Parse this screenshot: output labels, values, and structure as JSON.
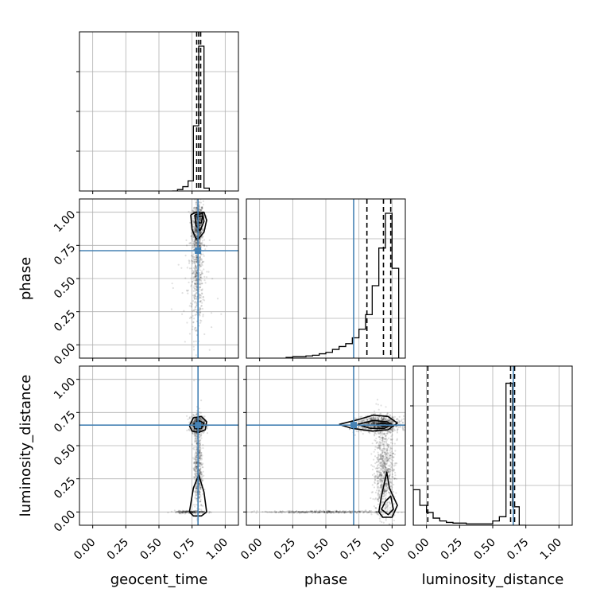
{
  "chart_data": {
    "type": "corner",
    "parameters": [
      "geocent_time",
      "phase",
      "luminosity_distance"
    ],
    "axis_range": [
      -0.1,
      1.1
    ],
    "tick_labels": [
      "0.00",
      "0.25",
      "0.50",
      "0.75",
      "1.00"
    ],
    "tick_values": [
      0,
      0.25,
      0.5,
      0.75,
      1.0
    ],
    "grid": true,
    "truths": {
      "geocent_time": 0.795,
      "phase": 0.71,
      "luminosity_distance": 0.655
    },
    "truth_color": "#4682b4",
    "quantiles": {
      "geocent_time": [
        0.785,
        0.8,
        0.815
      ],
      "phase": [
        0.81,
        0.935,
        0.99
      ],
      "luminosity_distance": [
        0.01,
        0.635,
        0.665
      ]
    },
    "histograms": {
      "geocent_time": {
        "edges": [
          0.6,
          0.64,
          0.68,
          0.72,
          0.76,
          0.8,
          0.84,
          0.88
        ],
        "counts": [
          0,
          0.01,
          0.03,
          0.07,
          0.45,
          1.0,
          0.02
        ],
        "ymax": 1.0
      },
      "phase": {
        "edges": [
          0.2,
          0.25,
          0.3,
          0.35,
          0.4,
          0.45,
          0.5,
          0.55,
          0.6,
          0.65,
          0.7,
          0.75,
          0.8,
          0.85,
          0.9,
          0.95,
          1.0,
          1.05
        ],
        "counts": [
          0.005,
          0.01,
          0.01,
          0.015,
          0.02,
          0.03,
          0.04,
          0.06,
          0.08,
          0.1,
          0.14,
          0.2,
          0.3,
          0.5,
          0.76,
          1.0,
          0.62
        ],
        "ymax": 1.0
      },
      "luminosity_distance": {
        "edges": [
          -0.1,
          -0.05,
          0.0,
          0.05,
          0.1,
          0.15,
          0.2,
          0.3,
          0.4,
          0.5,
          0.55,
          0.6,
          0.65,
          0.7,
          0.75
        ],
        "counts": [
          0.25,
          0.14,
          0.09,
          0.05,
          0.03,
          0.02,
          0.015,
          0.01,
          0.01,
          0.03,
          0.06,
          1.0,
          0.13,
          0.0
        ],
        "ymax": 1.02
      }
    },
    "scatter_clusters": {
      "geocent_time_phase": [
        {
          "cx": 0.795,
          "cy": 0.9,
          "sx": 0.02,
          "sy": 0.09,
          "n": 700
        },
        {
          "cx": 0.79,
          "cy": 0.55,
          "sx": 0.02,
          "sy": 0.2,
          "n": 500
        },
        {
          "cx": 0.78,
          "cy": 0.45,
          "sx": 0.07,
          "sy": 0.3,
          "n": 90
        }
      ],
      "geocent_time_luminosity_distance": [
        {
          "cx": 0.795,
          "cy": 0.66,
          "sx": 0.025,
          "sy": 0.03,
          "n": 700
        },
        {
          "cx": 0.795,
          "cy": 0.35,
          "sx": 0.015,
          "sy": 0.18,
          "n": 600
        },
        {
          "cx": 0.74,
          "cy": 0.0,
          "sx": 0.06,
          "sy": 0.005,
          "n": 200
        }
      ],
      "phase_luminosity_distance": [
        {
          "cx": 0.9,
          "cy": 0.66,
          "sx": 0.08,
          "sy": 0.03,
          "n": 900
        },
        {
          "cx": 0.94,
          "cy": 0.3,
          "sx": 0.04,
          "sy": 0.18,
          "n": 800
        },
        {
          "cx": 0.5,
          "cy": 0.0,
          "sx": 0.25,
          "sy": 0.004,
          "n": 350
        }
      ]
    },
    "contours": {
      "geocent_time_phase": [
        [
          [
            0.74,
            0.98
          ],
          [
            0.78,
            1.0
          ],
          [
            0.84,
            1.0
          ],
          [
            0.86,
            0.94
          ],
          [
            0.84,
            0.85
          ],
          [
            0.8,
            0.8
          ],
          [
            0.78,
            0.8
          ],
          [
            0.75,
            0.87
          ],
          [
            0.74,
            0.98
          ]
        ],
        [
          [
            0.77,
            0.98
          ],
          [
            0.83,
            0.99
          ],
          [
            0.84,
            0.93
          ],
          [
            0.81,
            0.86
          ],
          [
            0.78,
            0.9
          ],
          [
            0.77,
            0.98
          ]
        ],
        [
          [
            0.79,
            0.97
          ],
          [
            0.83,
            0.97
          ],
          [
            0.82,
            0.92
          ],
          [
            0.8,
            0.92
          ],
          [
            0.79,
            0.97
          ]
        ]
      ],
      "geocent_time_luminosity_distance": [
        [
          [
            0.73,
            0.65
          ],
          [
            0.76,
            0.71
          ],
          [
            0.82,
            0.72
          ],
          [
            0.86,
            0.68
          ],
          [
            0.85,
            0.62
          ],
          [
            0.8,
            0.6
          ],
          [
            0.75,
            0.61
          ],
          [
            0.73,
            0.65
          ]
        ],
        [
          [
            0.76,
            0.66
          ],
          [
            0.8,
            0.69
          ],
          [
            0.84,
            0.67
          ],
          [
            0.82,
            0.63
          ],
          [
            0.77,
            0.63
          ],
          [
            0.76,
            0.66
          ]
        ],
        [
          [
            0.73,
            0.0
          ],
          [
            0.76,
            0.18
          ],
          [
            0.8,
            0.28
          ],
          [
            0.84,
            0.15
          ],
          [
            0.86,
            0.0
          ],
          [
            0.82,
            -0.03
          ],
          [
            0.76,
            -0.03
          ],
          [
            0.73,
            0.0
          ]
        ]
      ],
      "phase_luminosity_distance": [
        [
          [
            0.6,
            0.66
          ],
          [
            0.72,
            0.69
          ],
          [
            0.86,
            0.73
          ],
          [
            0.97,
            0.72
          ],
          [
            1.04,
            0.67
          ],
          [
            0.97,
            0.62
          ],
          [
            0.85,
            0.61
          ],
          [
            0.7,
            0.63
          ],
          [
            0.6,
            0.66
          ]
        ],
        [
          [
            0.74,
            0.66
          ],
          [
            0.86,
            0.69
          ],
          [
            0.96,
            0.68
          ],
          [
            1.0,
            0.66
          ],
          [
            0.94,
            0.63
          ],
          [
            0.84,
            0.63
          ],
          [
            0.74,
            0.66
          ]
        ],
        [
          [
            0.88,
            0.66
          ],
          [
            0.93,
            0.67
          ],
          [
            0.98,
            0.66
          ],
          [
            0.94,
            0.645
          ],
          [
            0.88,
            0.66
          ]
        ],
        [
          [
            0.9,
            0.0
          ],
          [
            0.92,
            0.12
          ],
          [
            0.96,
            0.3
          ],
          [
            0.98,
            0.18
          ],
          [
            1.04,
            0.05
          ],
          [
            1.0,
            -0.04
          ],
          [
            0.93,
            -0.04
          ],
          [
            0.9,
            0.0
          ]
        ],
        [
          [
            0.92,
            0.02
          ],
          [
            0.95,
            0.08
          ],
          [
            0.99,
            0.12
          ],
          [
            1.01,
            0.02
          ],
          [
            0.97,
            -0.02
          ],
          [
            0.92,
            0.02
          ]
        ]
      ]
    }
  }
}
